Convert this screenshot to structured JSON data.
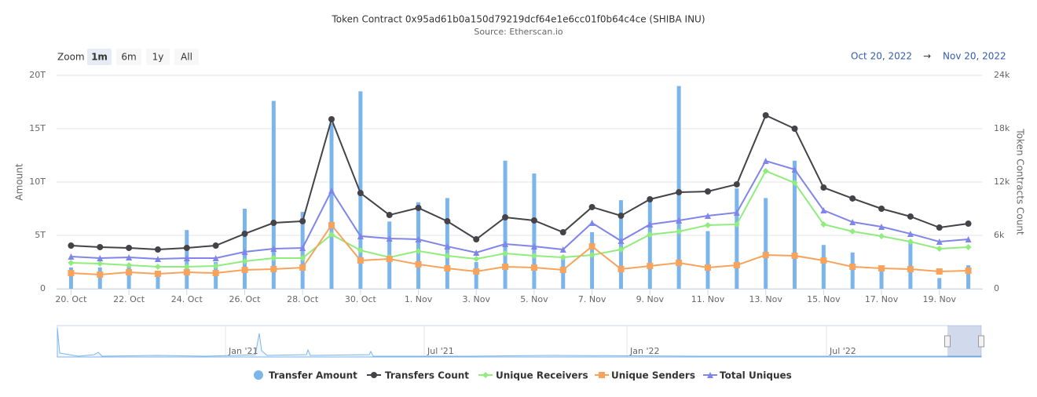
{
  "chart_data": {
    "type": "combo",
    "title": "Token Contract 0x95ad61b0a150d79219dcf64e1e6cc01f0b64c4ce (SHIBA INU)",
    "subtitle": "Source: Etherscan.io",
    "zoom": {
      "label": "Zoom",
      "buttons": [
        "1m",
        "6m",
        "1y",
        "All"
      ],
      "selected": 0
    },
    "range": {
      "from": "Oct 20, 2022",
      "arrow": "→",
      "to": "Nov 20, 2022"
    },
    "ylabel": "Amount",
    "y2label": "Token Contracts Count",
    "categories": [
      "20. Oct",
      null,
      "22. Oct",
      null,
      "24. Oct",
      null,
      "26. Oct",
      null,
      "28. Oct",
      null,
      "30. Oct",
      null,
      "1. Nov",
      null,
      "3. Nov",
      null,
      "5. Nov",
      null,
      "7. Nov",
      null,
      "9. Nov",
      null,
      "11. Nov",
      null,
      "13. Nov",
      null,
      "15. Nov",
      null,
      "17. Nov",
      null,
      "19. Nov",
      null
    ],
    "ylim": [
      0,
      20
    ],
    "yticks": [
      0,
      {
        "value": 5,
        "label": "5T"
      },
      {
        "value": 10,
        "label": "10T"
      },
      {
        "value": 15,
        "label": "15T"
      },
      {
        "value": 20,
        "label": "20T"
      }
    ],
    "y2lim": [
      0,
      24000
    ],
    "y2ticks": [
      0,
      {
        "value": 6000,
        "label": "6k"
      },
      {
        "value": 12000,
        "label": "12k"
      },
      {
        "value": 18000,
        "label": "18k"
      },
      {
        "value": 24000,
        "label": "24k"
      }
    ],
    "grid": true,
    "series": [
      {
        "name": "Transfer Amount",
        "type": "column",
        "color": "#7cb5ec",
        "marker": "circle",
        "values": [
          2.0,
          2.0,
          2.2,
          1.5,
          5.5,
          2.5,
          7.5,
          17.6,
          7.2,
          15.5,
          18.5,
          6.3,
          8.1,
          8.5,
          2.5,
          12.0,
          10.8,
          3.0,
          5.3,
          8.3,
          8.3,
          19.0,
          5.4,
          9.4,
          8.5,
          12.0,
          4.1,
          3.4,
          1.8,
          4.5,
          1.0,
          2.2
        ]
      },
      {
        "name": "Transfers Count",
        "type": "line",
        "axis": "y2",
        "color": "#434348",
        "marker": "circle",
        "values": [
          4850,
          4680,
          4590,
          4410,
          4590,
          4850,
          6180,
          7410,
          7590,
          19060,
          10760,
          8290,
          9090,
          7590,
          5560,
          8030,
          7680,
          6350,
          9180,
          8210,
          10060,
          10850,
          10940,
          11740,
          19500,
          18000,
          11380,
          10150,
          9000,
          8120,
          6880,
          7320
        ]
      },
      {
        "name": "Unique Receivers",
        "type": "line",
        "axis": "y2",
        "color": "#90ed7d",
        "marker": "diamond",
        "values": [
          2910,
          2820,
          2650,
          2470,
          2470,
          2560,
          3090,
          3440,
          3440,
          6090,
          4320,
          3530,
          4240,
          3710,
          3350,
          3970,
          3710,
          3530,
          3790,
          4410,
          6090,
          6440,
          7150,
          7240,
          13240,
          11910,
          7240,
          6440,
          5910,
          5290,
          4500,
          4680
        ]
      },
      {
        "name": "Unique Senders",
        "type": "line",
        "axis": "y2",
        "color": "#f7a35c",
        "marker": "square",
        "values": [
          1760,
          1590,
          1850,
          1680,
          1850,
          1760,
          2120,
          2210,
          2380,
          7150,
          3180,
          3350,
          2740,
          2290,
          1940,
          2470,
          2380,
          2120,
          4760,
          2210,
          2560,
          2910,
          2380,
          2650,
          3790,
          3710,
          3180,
          2470,
          2290,
          2210,
          1940,
          2030
        ]
      },
      {
        "name": "Total Uniques",
        "type": "line",
        "axis": "y2",
        "color": "#8085e9",
        "marker": "triangle",
        "values": [
          3620,
          3440,
          3530,
          3350,
          3440,
          3440,
          4150,
          4500,
          4590,
          11030,
          5910,
          5650,
          5560,
          4760,
          4060,
          5030,
          4760,
          4410,
          7410,
          5380,
          7240,
          7680,
          8210,
          8560,
          14380,
          13410,
          8820,
          7500,
          6970,
          6180,
          5290,
          5560
        ]
      }
    ],
    "navigator": {
      "labels": [
        "Jan '21",
        "Jul '21",
        "Jan '22",
        "Jul '22"
      ]
    }
  }
}
